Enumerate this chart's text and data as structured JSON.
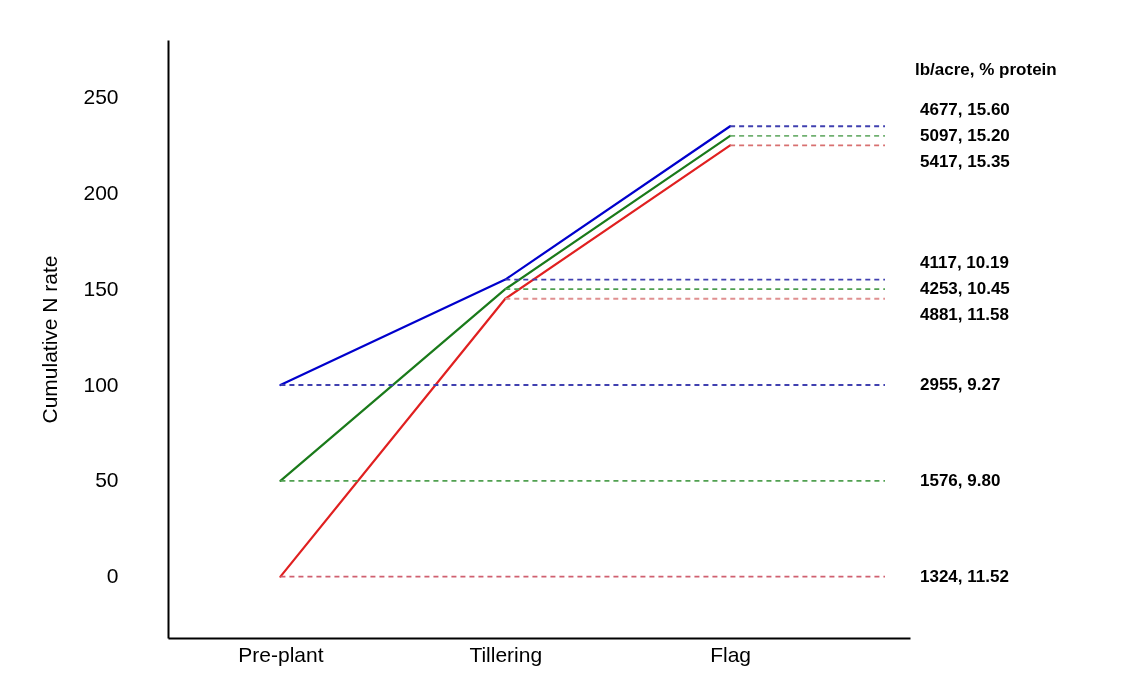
{
  "chart_data": {
    "type": "line",
    "ylabel": "Cumulative N rate",
    "categories": [
      "Pre-plant",
      "Tillering",
      "Flag"
    ],
    "series": [
      {
        "color": "#0000cc",
        "values": [
          100,
          155,
          235
        ]
      },
      {
        "color": "#1a7a1a",
        "values": [
          50,
          150,
          230
        ]
      },
      {
        "color": "#e02020",
        "values": [
          0,
          145,
          225
        ]
      }
    ],
    "ylim": [
      -32,
      280
    ],
    "yticks": [
      0,
      50,
      100,
      150,
      200,
      250
    ],
    "grid": false,
    "legend": false,
    "marker": "none",
    "line_style": "solid",
    "ref_lines": [
      {
        "axis": "y",
        "value": 235,
        "color": "#4040b0",
        "line_style": "dashed"
      },
      {
        "axis": "y",
        "value": 230,
        "color": "#70b070",
        "line_style": "dashed"
      },
      {
        "axis": "y",
        "value": 225,
        "color": "#d87070",
        "line_style": "dashed"
      },
      {
        "axis": "y",
        "value": 155,
        "color": "#4040b0",
        "line_style": "dashed"
      },
      {
        "axis": "y",
        "value": 150,
        "color": "#50a050",
        "line_style": "dashed"
      },
      {
        "axis": "y",
        "value": 145,
        "color": "#e09090",
        "line_style": "dashed"
      },
      {
        "axis": "y",
        "value": 100,
        "color": "#4040b0",
        "line_style": "dashed"
      },
      {
        "axis": "y",
        "value": 50,
        "color": "#50a050",
        "line_style": "dashed"
      },
      {
        "axis": "y",
        "value": 0,
        "color": "#d06070",
        "line_style": "dashed"
      }
    ],
    "annotations": [
      "lb/acre, % protein",
      "4677, 15.60",
      "5097, 15.20",
      "5417, 15.35",
      "4117, 10.19",
      "4253, 10.45",
      "4881, 11.58",
      "2955, 9.27",
      "1576, 9.80",
      "1324, 11.52"
    ]
  }
}
